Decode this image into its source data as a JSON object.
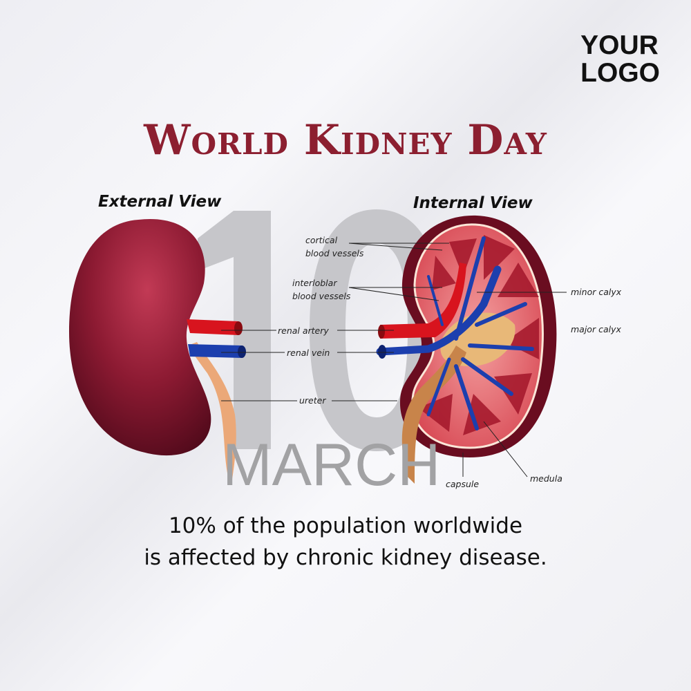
{
  "logo": {
    "line1": "YOUR",
    "line2": "LOGO"
  },
  "title": "World Kidney Day",
  "date": {
    "day": "10",
    "month": "MARCH"
  },
  "views": {
    "external": "External View",
    "internal": "Internal View"
  },
  "labels": {
    "cortical_1": "cortical",
    "cortical_2": "blood vessels",
    "interlobar_1": "interloblar",
    "interlobar_2": "blood vessels",
    "renal_artery": "renal artery",
    "renal_vein": "renal vein",
    "ureter": "ureter",
    "minor_calyx": "minor calyx",
    "major_calyx": "major calyx",
    "capsule": "capsule",
    "medula": "medula"
  },
  "fact": {
    "line1": "10% of the population worldwide",
    "line2": "is affected by chronic kidney disease."
  },
  "colors": {
    "title": "#8c1f30",
    "kidney": "#8a1730",
    "artery": "#d8141e",
    "vein": "#1c3fae",
    "ureter": "#e8a070"
  }
}
